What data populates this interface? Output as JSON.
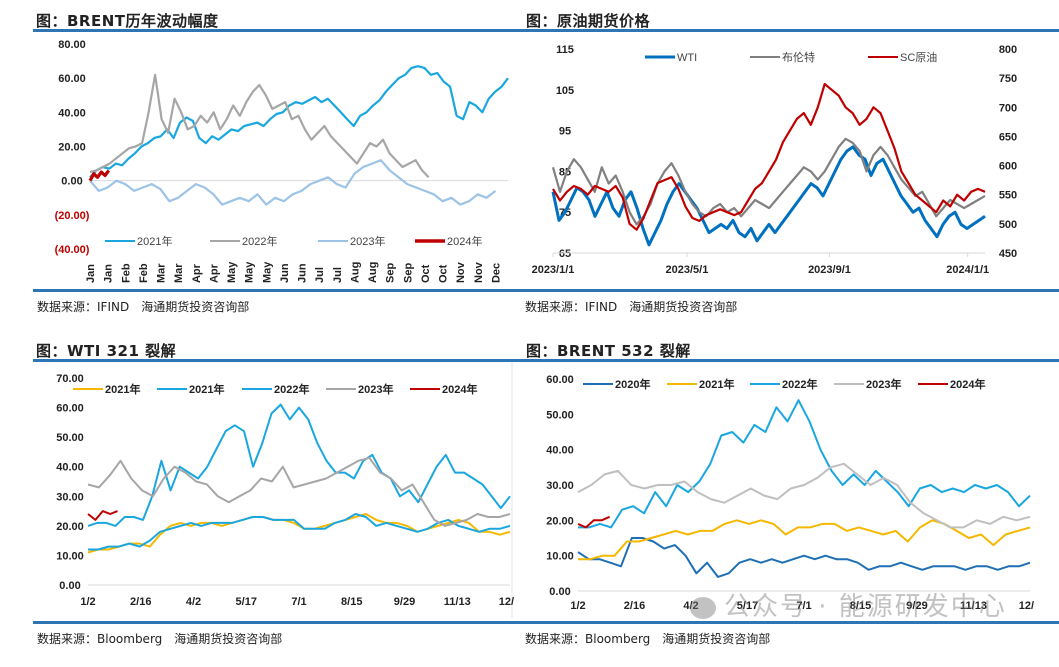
{
  "panels": {
    "brent_volatility": {
      "title": "图：BRENT历年波动幅度",
      "source": "数据来源：IFIND　海通期货投资咨询部"
    },
    "crude_prices": {
      "title": "图：原油期货价格",
      "source": "数据来源：IFIND　海通期货投资咨询部"
    },
    "wti_crack": {
      "title": "图：WTI 321 裂解",
      "source": "数据来源：Bloomberg　海通期货投资咨询部"
    },
    "brent_crack": {
      "title": "图：BRENT 532 裂解",
      "source": "数据来源：Bloomberg　海通期货投资咨询部"
    }
  },
  "watermark": "公众号 · 能源研发中心",
  "chart_data": [
    {
      "id": "brent_volatility",
      "type": "line",
      "title": "BRENT历年波动幅度",
      "xlabel": "",
      "ylabel": "",
      "ylim": [
        -40,
        80
      ],
      "yticks": [
        80,
        60,
        40,
        20,
        0,
        -20,
        -40
      ],
      "ytick_labels": [
        "80.00",
        "60.00",
        "40.00",
        "20.00",
        "0.00",
        "(20.00)",
        "(40.00)"
      ],
      "x_tick_labels": [
        "Jan",
        "Jan",
        "Feb",
        "Feb",
        "Mar",
        "Mar",
        "Apr",
        "Apr",
        "May",
        "May",
        "May",
        "Jun",
        "Jun",
        "Jul",
        "Jul",
        "Aug",
        "Aug",
        "Sep",
        "Sep",
        "Oct",
        "Oct",
        "Nov",
        "Nov",
        "Dec"
      ],
      "legend": "bottom",
      "grid": false,
      "zero_line": true,
      "n_points": 48,
      "series": [
        {
          "name": "2021年",
          "color": "#1aa7e0",
          "values": [
            2,
            6,
            8,
            7,
            10,
            9,
            13,
            16,
            20,
            22,
            25,
            26,
            30,
            25,
            34,
            37,
            35,
            25,
            22,
            26,
            24,
            27,
            30,
            29,
            32,
            33,
            34,
            32,
            36,
            39,
            40,
            44,
            46,
            45,
            47,
            49,
            46,
            48,
            44,
            40,
            36,
            32,
            38,
            40,
            44,
            47,
            52,
            56,
            60,
            62,
            66,
            67,
            66,
            62,
            63,
            58,
            55,
            38,
            36,
            46,
            44,
            40,
            48,
            52,
            55,
            60
          ]
        },
        {
          "name": "2022年",
          "color": "#a6a6a6",
          "values": [
            5,
            6,
            8,
            10,
            13,
            16,
            19,
            20,
            22,
            40,
            62,
            36,
            28,
            48,
            40,
            30,
            32,
            38,
            34,
            40,
            30,
            36,
            44,
            38,
            46,
            52,
            56,
            50,
            42,
            44,
            46,
            36,
            38,
            30,
            24,
            28,
            32,
            26,
            22,
            18,
            14,
            10,
            16,
            22,
            20,
            24,
            16,
            12,
            8,
            10,
            12,
            6,
            2
          ]
        },
        {
          "name": "2023年",
          "color": "#9dc3e6",
          "values": [
            0,
            -6,
            -4,
            0,
            -2,
            -6,
            -4,
            -2,
            -5,
            -12,
            -10,
            -6,
            -2,
            -4,
            -8,
            -14,
            -12,
            -10,
            -12,
            -8,
            -14,
            -10,
            -12,
            -8,
            -6,
            -2,
            0,
            2,
            -2,
            -4,
            4,
            8,
            10,
            12,
            6,
            2,
            -2,
            -4,
            -6,
            -8,
            -12,
            -10,
            -14,
            -12,
            -8,
            -10,
            -6
          ]
        },
        {
          "name": "2024年",
          "color": "#c00000",
          "values": [
            0,
            4,
            2,
            5,
            3,
            6
          ]
        }
      ]
    },
    {
      "id": "crude_prices",
      "type": "line",
      "title": "原油期货价格",
      "xlabel": "",
      "ylabel": "",
      "ylim": [
        65,
        115
      ],
      "yticks": [
        115,
        105,
        95,
        85,
        75,
        65
      ],
      "y2lim": [
        450,
        800
      ],
      "y2ticks": [
        800,
        750,
        700,
        650,
        600,
        550,
        500,
        450
      ],
      "x_tick_labels": [
        "2023/1/1",
        "2023/5/1",
        "2023/9/1",
        "2024/1/1"
      ],
      "x_range": [
        "2023/1/1",
        "2024/1/18"
      ],
      "legend": "top",
      "grid": false,
      "series": [
        {
          "name": "WTI",
          "axis": "left",
          "color": "#0070c0",
          "values": [
            80,
            73,
            75,
            78,
            81,
            80,
            78,
            74,
            77,
            80,
            76,
            74,
            78,
            80,
            76,
            71,
            67,
            70,
            73,
            77,
            80,
            82,
            80,
            78,
            76,
            73,
            70,
            71,
            72,
            71,
            73,
            70,
            69,
            71,
            68,
            70,
            72,
            70,
            72,
            74,
            76,
            78,
            80,
            82,
            81,
            79,
            82,
            85,
            88,
            90,
            91,
            89,
            88,
            84,
            87,
            88,
            85,
            82,
            79,
            77,
            75,
            76,
            73,
            71,
            69,
            72,
            74,
            75,
            72,
            71,
            72,
            73,
            74
          ]
        },
        {
          "name": "布伦特",
          "axis": "left",
          "color": "#808080",
          "values": [
            86,
            80,
            85,
            88,
            86,
            83,
            80,
            86,
            82,
            84,
            80,
            75,
            72,
            74,
            77,
            82,
            85,
            87,
            84,
            80,
            77,
            75,
            74,
            76,
            77,
            75,
            76,
            74,
            76,
            78,
            77,
            76,
            78,
            80,
            82,
            84,
            86,
            85,
            83,
            85,
            88,
            91,
            93,
            92,
            90,
            85,
            89,
            91,
            89,
            86,
            83,
            81,
            79,
            80,
            77,
            74,
            76,
            78,
            77,
            76,
            77,
            78,
            79
          ]
        },
        {
          "name": "SC原油",
          "axis": "right",
          "color": "#c00000",
          "values": [
            560,
            540,
            555,
            565,
            560,
            550,
            565,
            560,
            555,
            565,
            545,
            500,
            490,
            510,
            540,
            570,
            575,
            580,
            560,
            530,
            510,
            505,
            515,
            520,
            525,
            520,
            515,
            520,
            540,
            560,
            570,
            590,
            610,
            640,
            660,
            680,
            690,
            670,
            700,
            740,
            730,
            720,
            700,
            690,
            670,
            680,
            700,
            690,
            660,
            630,
            590,
            570,
            550,
            540,
            530,
            520,
            540,
            530,
            550,
            540,
            555,
            560,
            555
          ]
        }
      ]
    },
    {
      "id": "wti_crack",
      "type": "line",
      "title": "WTI 321 裂解",
      "xlabel": "",
      "ylabel": "",
      "ylim": [
        0,
        70
      ],
      "yticks": [
        70,
        60,
        50,
        40,
        30,
        20,
        10,
        0
      ],
      "ytick_labels": [
        "70.00",
        "60.00",
        "50.00",
        "40.00",
        "30.00",
        "20.00",
        "10.00",
        "0.00"
      ],
      "x_tick_labels": [
        "1/2",
        "2/16",
        "4/2",
        "5/17",
        "7/1",
        "8/15",
        "9/29",
        "11/13",
        "12/"
      ],
      "legend": "top",
      "grid": false,
      "series": [
        {
          "name": "2021年",
          "color": "#f5b800",
          "values": [
            11,
            12,
            12,
            13,
            14,
            14,
            13,
            17,
            20,
            21,
            20,
            21,
            21,
            20,
            21,
            22,
            23,
            23,
            22,
            22,
            21,
            19,
            19,
            20,
            21,
            22,
            23,
            24,
            22,
            21,
            21,
            20,
            18,
            19,
            20,
            21,
            22,
            21,
            18,
            18,
            17,
            18
          ]
        },
        {
          "name": "2021年",
          "color": "#1aa7e0",
          "values": [
            12,
            12,
            13,
            13,
            14,
            13,
            15,
            18,
            19,
            20,
            21,
            20,
            21,
            21,
            21,
            22,
            23,
            23,
            22,
            22,
            22,
            19,
            19,
            19,
            21,
            22,
            24,
            23,
            20,
            21,
            20,
            19,
            18,
            19,
            21,
            22,
            20,
            19,
            18,
            19,
            19,
            20
          ]
        },
        {
          "name": "2022年",
          "color": "#1aa7e0",
          "values": [
            20,
            21,
            21,
            20,
            23,
            23,
            22,
            30,
            42,
            32,
            40,
            38,
            36,
            40,
            46,
            52,
            54,
            52,
            40,
            48,
            58,
            61,
            56,
            60,
            56,
            48,
            42,
            38,
            38,
            36,
            42,
            44,
            38,
            36,
            30,
            32,
            28,
            34,
            40,
            44,
            38,
            38,
            36,
            34,
            30,
            26,
            30
          ]
        },
        {
          "name": "2023年",
          "color": "#a6a6a6",
          "values": [
            34,
            33,
            37,
            42,
            36,
            32,
            30,
            36,
            40,
            38,
            35,
            34,
            30,
            28,
            30,
            32,
            36,
            35,
            40,
            33,
            34,
            35,
            36,
            38,
            40,
            42,
            43,
            38,
            36,
            32,
            34,
            28,
            22,
            20,
            21,
            22,
            24,
            23,
            23,
            24
          ]
        },
        {
          "name": "2024年",
          "color": "#c00000",
          "values": [
            24,
            22,
            25,
            24,
            25
          ]
        }
      ]
    },
    {
      "id": "brent_crack",
      "type": "line",
      "title": "BRENT 532 裂解",
      "xlabel": "",
      "ylabel": "",
      "ylim": [
        0,
        60
      ],
      "yticks": [
        60,
        50,
        40,
        30,
        20,
        10,
        0
      ],
      "ytick_labels": [
        "60.00",
        "50.00",
        "40.00",
        "30.00",
        "20.00",
        "10.00",
        "0.00"
      ],
      "x_tick_labels": [
        "1/2",
        "2/16",
        "4/2",
        "5/17",
        "7/1",
        "8/15",
        "9/29",
        "11/13",
        "12/"
      ],
      "legend": "top",
      "grid": false,
      "series": [
        {
          "name": "2020年",
          "color": "#1f6fb5",
          "values": [
            11,
            9,
            9,
            8,
            7,
            15,
            15,
            14,
            12,
            13,
            10,
            5,
            8,
            4,
            5,
            8,
            9,
            8,
            9,
            8,
            9,
            10,
            9,
            10,
            9,
            9,
            8,
            6,
            7,
            7,
            8,
            7,
            6,
            7,
            7,
            7,
            6,
            7,
            7,
            6,
            7,
            7,
            8
          ]
        },
        {
          "name": "2021年",
          "color": "#f5b800",
          "values": [
            9,
            9,
            10,
            10,
            14,
            14,
            15,
            16,
            17,
            16,
            17,
            17,
            19,
            20,
            19,
            20,
            19,
            16,
            18,
            18,
            19,
            19,
            17,
            18,
            17,
            16,
            17,
            14,
            18,
            20,
            19,
            17,
            15,
            16,
            13,
            16,
            17,
            18
          ]
        },
        {
          "name": "2022年",
          "color": "#1aa7e0",
          "values": [
            18,
            18,
            19,
            18,
            23,
            24,
            22,
            28,
            24,
            30,
            28,
            31,
            36,
            44,
            45,
            42,
            47,
            45,
            52,
            48,
            54,
            48,
            40,
            34,
            30,
            33,
            30,
            34,
            31,
            28,
            24,
            29,
            30,
            28,
            29,
            28,
            30,
            29,
            30,
            28,
            24,
            27
          ]
        },
        {
          "name": "2023年",
          "color": "#bfbfbf",
          "values": [
            28,
            30,
            33,
            34,
            30,
            29,
            30,
            30,
            31,
            28,
            26,
            25,
            27,
            29,
            27,
            26,
            29,
            30,
            32,
            35,
            36,
            33,
            30,
            32,
            30,
            25,
            22,
            20,
            18,
            18,
            20,
            19,
            21,
            20,
            21
          ]
        },
        {
          "name": "2024年",
          "color": "#c00000",
          "values": [
            19,
            18,
            20,
            20,
            21
          ]
        }
      ]
    }
  ]
}
